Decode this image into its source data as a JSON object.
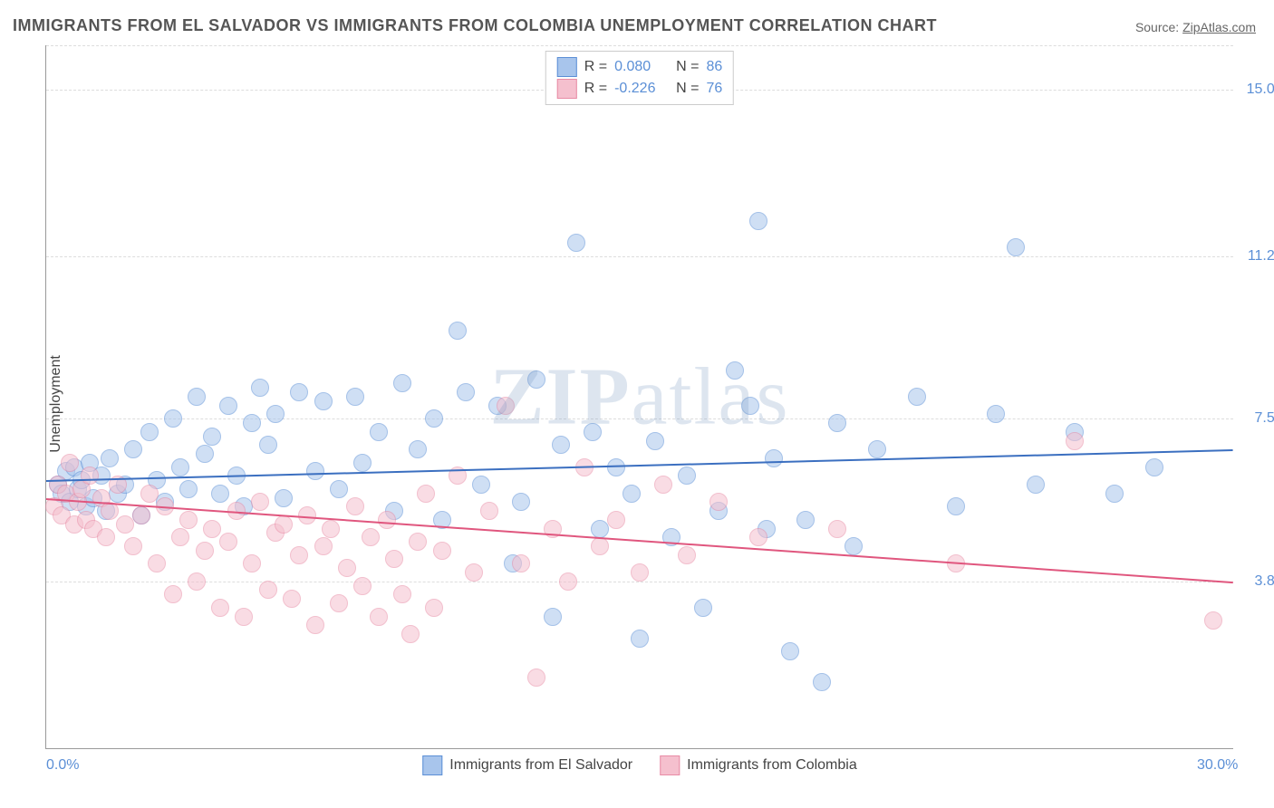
{
  "title": "IMMIGRANTS FROM EL SALVADOR VS IMMIGRANTS FROM COLOMBIA UNEMPLOYMENT CORRELATION CHART",
  "source_label": "Source:",
  "source_name": "ZipAtlas.com",
  "ylabel": "Unemployment",
  "watermark_a": "ZIP",
  "watermark_b": "atlas",
  "chart": {
    "type": "scatter",
    "xlim": [
      0,
      30
    ],
    "ylim": [
      0,
      16
    ],
    "x_ticks": [
      {
        "v": 0,
        "label": "0.0%"
      },
      {
        "v": 30,
        "label": "30.0%"
      }
    ],
    "y_ticks": [
      {
        "v": 3.8,
        "label": "3.8%"
      },
      {
        "v": 7.5,
        "label": "7.5%"
      },
      {
        "v": 11.2,
        "label": "11.2%"
      },
      {
        "v": 15.0,
        "label": "15.0%"
      }
    ],
    "grid_color": "#dddddd",
    "axis_color": "#999999",
    "background_color": "#ffffff",
    "point_radius": 9,
    "point_opacity": 0.55,
    "series": [
      {
        "name": "Immigrants from El Salvador",
        "color_fill": "#a8c5ec",
        "color_stroke": "#5b8fd6",
        "trend_color": "#3b6fc0",
        "R": "0.080",
        "N": "86",
        "trend": {
          "x1": 0,
          "y1": 6.1,
          "x2": 30,
          "y2": 6.8
        },
        "points": [
          [
            0.3,
            6.0
          ],
          [
            0.4,
            5.8
          ],
          [
            0.5,
            6.3
          ],
          [
            0.6,
            5.6
          ],
          [
            0.7,
            6.4
          ],
          [
            0.8,
            5.9
          ],
          [
            0.9,
            6.1
          ],
          [
            1.0,
            5.5
          ],
          [
            1.1,
            6.5
          ],
          [
            1.2,
            5.7
          ],
          [
            1.4,
            6.2
          ],
          [
            1.5,
            5.4
          ],
          [
            1.6,
            6.6
          ],
          [
            1.8,
            5.8
          ],
          [
            2.0,
            6.0
          ],
          [
            2.2,
            6.8
          ],
          [
            2.4,
            5.3
          ],
          [
            2.6,
            7.2
          ],
          [
            2.8,
            6.1
          ],
          [
            3.0,
            5.6
          ],
          [
            3.2,
            7.5
          ],
          [
            3.4,
            6.4
          ],
          [
            3.6,
            5.9
          ],
          [
            3.8,
            8.0
          ],
          [
            4.0,
            6.7
          ],
          [
            4.2,
            7.1
          ],
          [
            4.4,
            5.8
          ],
          [
            4.6,
            7.8
          ],
          [
            4.8,
            6.2
          ],
          [
            5.0,
            5.5
          ],
          [
            5.2,
            7.4
          ],
          [
            5.4,
            8.2
          ],
          [
            5.6,
            6.9
          ],
          [
            5.8,
            7.6
          ],
          [
            6.0,
            5.7
          ],
          [
            6.4,
            8.1
          ],
          [
            6.8,
            6.3
          ],
          [
            7.0,
            7.9
          ],
          [
            7.4,
            5.9
          ],
          [
            7.8,
            8.0
          ],
          [
            8.0,
            6.5
          ],
          [
            8.4,
            7.2
          ],
          [
            8.8,
            5.4
          ],
          [
            9.0,
            8.3
          ],
          [
            9.4,
            6.8
          ],
          [
            9.8,
            7.5
          ],
          [
            10.0,
            5.2
          ],
          [
            10.4,
            9.5
          ],
          [
            10.6,
            8.1
          ],
          [
            11.0,
            6.0
          ],
          [
            11.4,
            7.8
          ],
          [
            11.8,
            4.2
          ],
          [
            12.0,
            5.6
          ],
          [
            12.4,
            8.4
          ],
          [
            12.8,
            3.0
          ],
          [
            13.0,
            6.9
          ],
          [
            13.4,
            11.5
          ],
          [
            13.8,
            7.2
          ],
          [
            14.0,
            5.0
          ],
          [
            14.4,
            6.4
          ],
          [
            14.8,
            5.8
          ],
          [
            15.0,
            2.5
          ],
          [
            15.4,
            7.0
          ],
          [
            15.8,
            4.8
          ],
          [
            16.2,
            6.2
          ],
          [
            16.6,
            3.2
          ],
          [
            17.0,
            5.4
          ],
          [
            17.4,
            8.6
          ],
          [
            17.8,
            7.8
          ],
          [
            18.0,
            12.0
          ],
          [
            18.2,
            5.0
          ],
          [
            18.4,
            6.6
          ],
          [
            18.8,
            2.2
          ],
          [
            19.2,
            5.2
          ],
          [
            19.6,
            1.5
          ],
          [
            20.0,
            7.4
          ],
          [
            20.4,
            4.6
          ],
          [
            21.0,
            6.8
          ],
          [
            22.0,
            8.0
          ],
          [
            23.0,
            5.5
          ],
          [
            24.0,
            7.6
          ],
          [
            24.5,
            11.4
          ],
          [
            25.0,
            6.0
          ],
          [
            26.0,
            7.2
          ],
          [
            27.0,
            5.8
          ],
          [
            28.0,
            6.4
          ]
        ]
      },
      {
        "name": "Immigrants from Colombia",
        "color_fill": "#f5c0ce",
        "color_stroke": "#e88ba5",
        "trend_color": "#e0567e",
        "R": "-0.226",
        "N": "76",
        "trend": {
          "x1": 0,
          "y1": 5.7,
          "x2": 30,
          "y2": 3.8
        },
        "points": [
          [
            0.2,
            5.5
          ],
          [
            0.3,
            6.0
          ],
          [
            0.4,
            5.3
          ],
          [
            0.5,
            5.8
          ],
          [
            0.6,
            6.5
          ],
          [
            0.7,
            5.1
          ],
          [
            0.8,
            5.6
          ],
          [
            0.9,
            5.9
          ],
          [
            1.0,
            5.2
          ],
          [
            1.1,
            6.2
          ],
          [
            1.2,
            5.0
          ],
          [
            1.4,
            5.7
          ],
          [
            1.5,
            4.8
          ],
          [
            1.6,
            5.4
          ],
          [
            1.8,
            6.0
          ],
          [
            2.0,
            5.1
          ],
          [
            2.2,
            4.6
          ],
          [
            2.4,
            5.3
          ],
          [
            2.6,
            5.8
          ],
          [
            2.8,
            4.2
          ],
          [
            3.0,
            5.5
          ],
          [
            3.2,
            3.5
          ],
          [
            3.4,
            4.8
          ],
          [
            3.6,
            5.2
          ],
          [
            3.8,
            3.8
          ],
          [
            4.0,
            4.5
          ],
          [
            4.2,
            5.0
          ],
          [
            4.4,
            3.2
          ],
          [
            4.6,
            4.7
          ],
          [
            4.8,
            5.4
          ],
          [
            5.0,
            3.0
          ],
          [
            5.2,
            4.2
          ],
          [
            5.4,
            5.6
          ],
          [
            5.6,
            3.6
          ],
          [
            5.8,
            4.9
          ],
          [
            6.0,
            5.1
          ],
          [
            6.2,
            3.4
          ],
          [
            6.4,
            4.4
          ],
          [
            6.6,
            5.3
          ],
          [
            6.8,
            2.8
          ],
          [
            7.0,
            4.6
          ],
          [
            7.2,
            5.0
          ],
          [
            7.4,
            3.3
          ],
          [
            7.6,
            4.1
          ],
          [
            7.8,
            5.5
          ],
          [
            8.0,
            3.7
          ],
          [
            8.2,
            4.8
          ],
          [
            8.4,
            3.0
          ],
          [
            8.6,
            5.2
          ],
          [
            8.8,
            4.3
          ],
          [
            9.0,
            3.5
          ],
          [
            9.2,
            2.6
          ],
          [
            9.4,
            4.7
          ],
          [
            9.6,
            5.8
          ],
          [
            9.8,
            3.2
          ],
          [
            10.0,
            4.5
          ],
          [
            10.4,
            6.2
          ],
          [
            10.8,
            4.0
          ],
          [
            11.2,
            5.4
          ],
          [
            11.6,
            7.8
          ],
          [
            12.0,
            4.2
          ],
          [
            12.4,
            1.6
          ],
          [
            12.8,
            5.0
          ],
          [
            13.2,
            3.8
          ],
          [
            13.6,
            6.4
          ],
          [
            14.0,
            4.6
          ],
          [
            14.4,
            5.2
          ],
          [
            15.0,
            4.0
          ],
          [
            15.6,
            6.0
          ],
          [
            16.2,
            4.4
          ],
          [
            17.0,
            5.6
          ],
          [
            18.0,
            4.8
          ],
          [
            20.0,
            5.0
          ],
          [
            23.0,
            4.2
          ],
          [
            26.0,
            7.0
          ],
          [
            29.5,
            2.9
          ]
        ]
      }
    ]
  },
  "legend_top": {
    "r_label": "R =",
    "n_label": "N ="
  }
}
